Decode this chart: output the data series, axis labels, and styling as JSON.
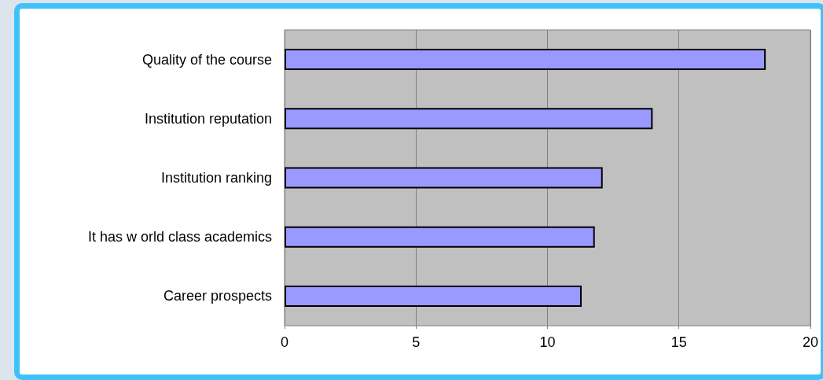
{
  "chart_data": {
    "type": "bar",
    "orientation": "horizontal",
    "categories": [
      "Quality of the course",
      "Institution reputation",
      "Institution ranking",
      "It has w orld class academics",
      "Career prospects"
    ],
    "values": [
      18.3,
      14.0,
      12.1,
      11.8,
      11.3
    ],
    "color": "#9999ff",
    "xlim": [
      0,
      20
    ],
    "xticks": [
      0,
      5,
      10,
      15,
      20
    ],
    "grid": "x"
  }
}
